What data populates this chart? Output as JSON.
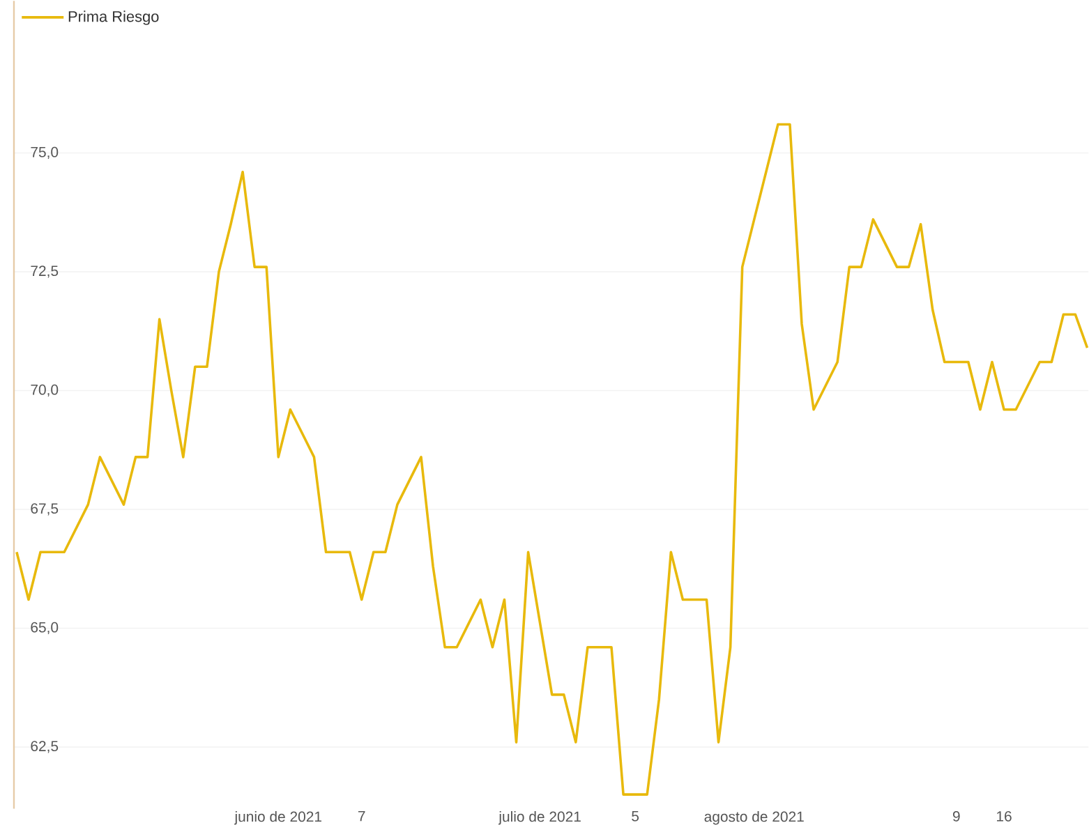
{
  "chart_data": {
    "type": "line",
    "categories": [
      null,
      null,
      null,
      null,
      null,
      null,
      null,
      null,
      null,
      null,
      null,
      null,
      null,
      null,
      null,
      null,
      null,
      null,
      null,
      null,
      null,
      null,
      "junio de 2021",
      null,
      null,
      null,
      null,
      null,
      null,
      "7",
      null,
      null,
      null,
      null,
      null,
      null,
      null,
      null,
      null,
      null,
      null,
      null,
      null,
      null,
      "julio de 2021",
      null,
      null,
      null,
      null,
      null,
      null,
      null,
      "5",
      null,
      null,
      null,
      null,
      null,
      null,
      null,
      null,
      null,
      "agosto de 2021",
      null,
      null,
      null,
      null,
      null,
      null,
      null,
      null,
      null,
      null,
      null,
      null,
      null,
      null,
      null,
      null,
      "9",
      null,
      null,
      null,
      "16",
      null,
      null,
      null,
      null,
      null,
      null,
      null
    ],
    "series": [
      {
        "name": "Prima Riesgo",
        "color": "#e8b90c",
        "values": [
          66.6,
          65.6,
          66.6,
          66.6,
          66.6,
          67.1,
          67.6,
          68.6,
          68.1,
          67.6,
          68.6,
          68.6,
          71.5,
          70.0,
          68.6,
          70.5,
          70.5,
          72.5,
          73.5,
          74.6,
          72.6,
          72.6,
          68.6,
          69.6,
          69.1,
          68.6,
          66.6,
          66.6,
          66.6,
          65.6,
          66.6,
          66.6,
          67.6,
          68.1,
          68.6,
          66.3,
          64.6,
          64.6,
          65.1,
          65.6,
          64.6,
          65.6,
          62.6,
          66.6,
          65.1,
          63.6,
          63.6,
          62.6,
          64.6,
          64.6,
          64.6,
          61.5,
          61.5,
          61.5,
          63.5,
          66.6,
          65.6,
          65.6,
          65.6,
          62.6,
          64.6,
          72.6,
          73.6,
          74.6,
          75.6,
          75.6,
          71.4,
          69.6,
          70.1,
          70.6,
          72.6,
          72.6,
          73.6,
          73.1,
          72.6,
          72.6,
          73.5,
          71.7,
          70.6,
          70.6,
          70.6,
          69.6,
          70.6,
          69.6,
          69.6,
          70.1,
          70.6,
          70.6,
          71.6,
          71.6,
          70.9
        ]
      }
    ],
    "ylim": [
      61.2,
      78.2
    ],
    "yticks": [
      {
        "value": 62.5,
        "label": "62,5"
      },
      {
        "value": 65,
        "label": "65,0"
      },
      {
        "value": 67.5,
        "label": "67,5"
      },
      {
        "value": 70,
        "label": "70,0"
      },
      {
        "value": 72.5,
        "label": "72,5"
      },
      {
        "value": 75,
        "label": "75,0"
      }
    ],
    "grid": "y",
    "legend": "top left",
    "marker": "none",
    "line_style": "solid"
  }
}
